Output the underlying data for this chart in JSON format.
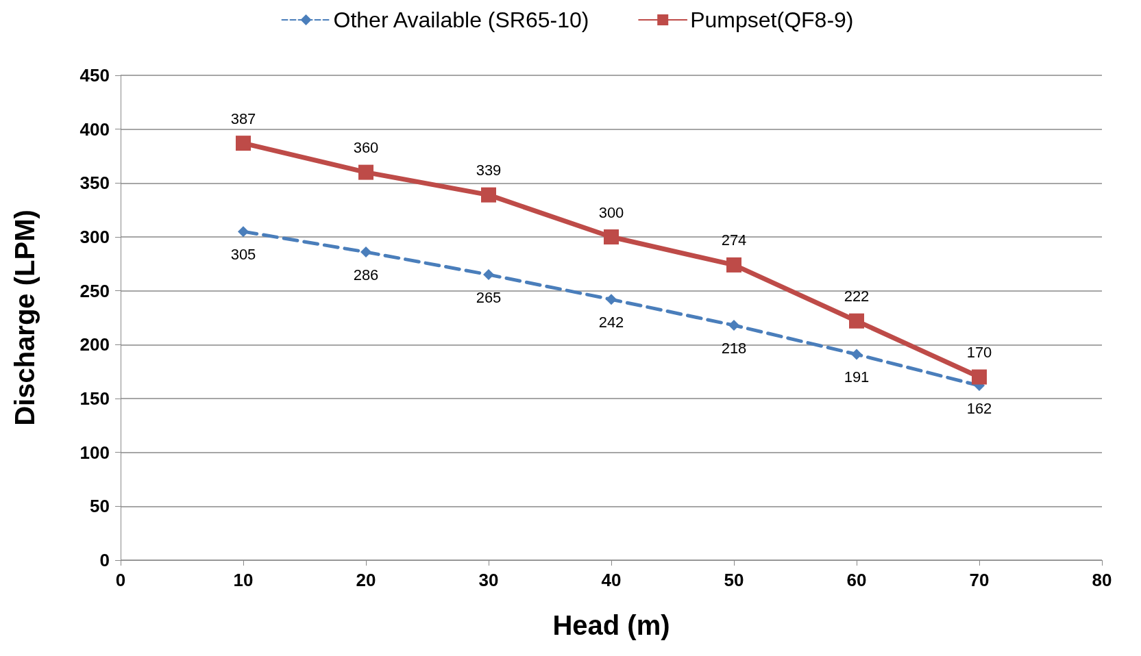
{
  "chart_data": {
    "type": "line",
    "xlabel": "Head (m)",
    "ylabel": "Discharge (LPM)",
    "x": [
      10,
      20,
      30,
      40,
      50,
      60,
      70
    ],
    "series": [
      {
        "name": "Other Available (SR65-10)",
        "color": "#4a7ebb",
        "values": [
          305,
          286,
          265,
          242,
          218,
          191,
          162
        ],
        "marker": "diamond",
        "line_style": "dashed"
      },
      {
        "name": "Pumpset(QF8-9)",
        "color": "#be4b48",
        "values": [
          387,
          360,
          339,
          300,
          274,
          222,
          170
        ],
        "marker": "square",
        "line_style": "solid"
      }
    ],
    "xlim": [
      0,
      80
    ],
    "xticks": [
      0,
      10,
      20,
      30,
      40,
      50,
      60,
      70,
      80
    ],
    "ylim": [
      0,
      450
    ],
    "yticks": [
      0,
      50,
      100,
      150,
      200,
      250,
      300,
      350,
      400,
      450
    ],
    "grid": "y",
    "legend": "top",
    "data_labels": true
  }
}
